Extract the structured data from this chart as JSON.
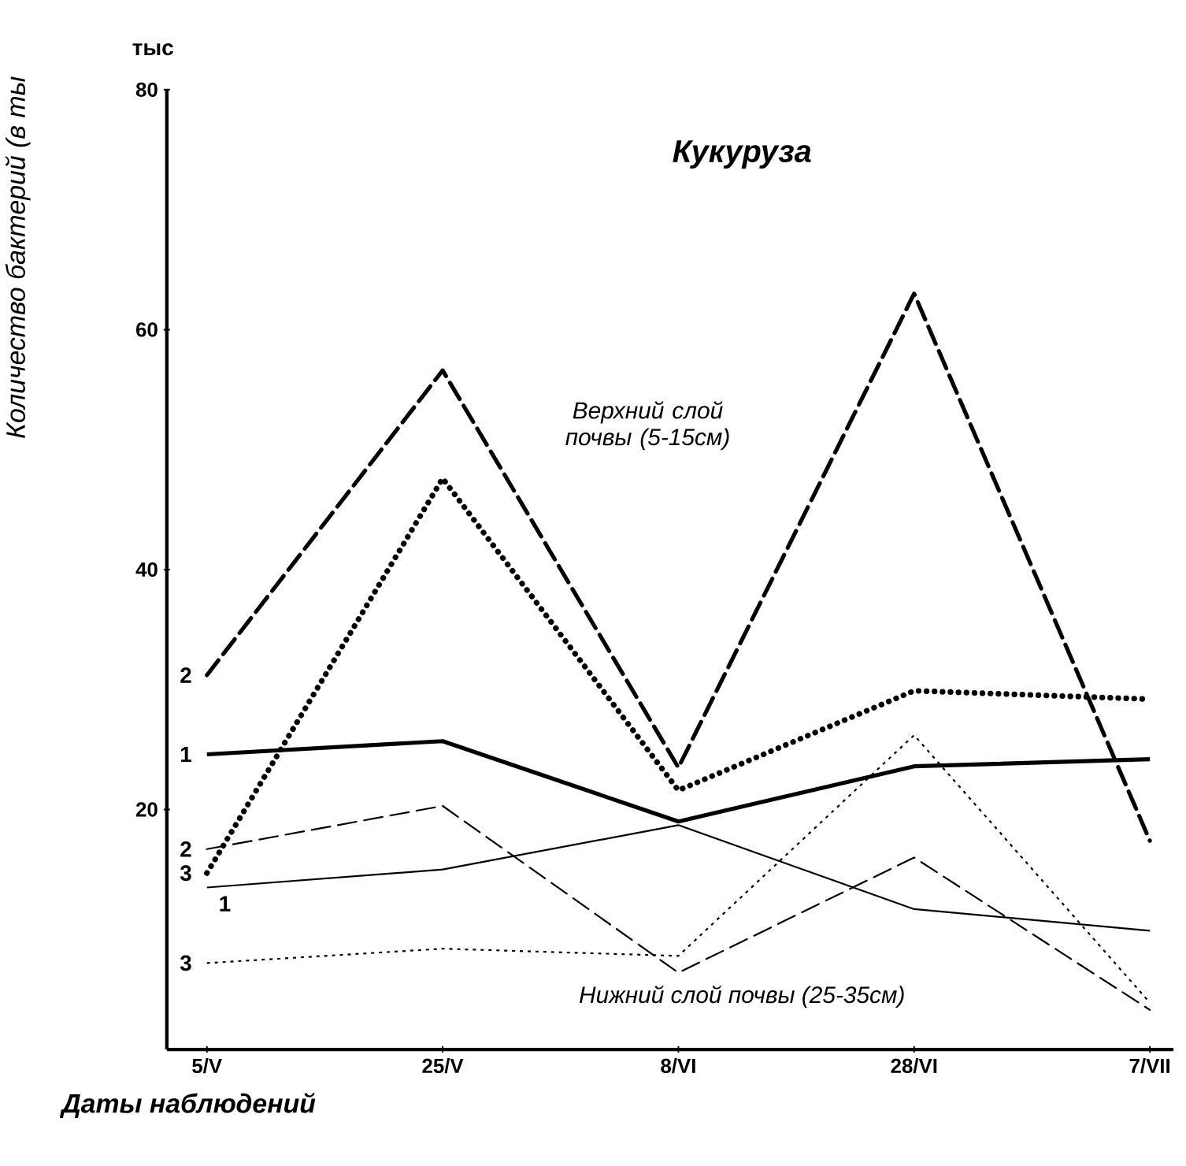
{
  "chart_data": {
    "type": "line",
    "title": "Кукуруза",
    "xlabel": "Даты наблюдений",
    "ylabel": "Количество бактерий (в ты",
    "categories": [
      "5/V",
      "25/V",
      "8/VI",
      "28/VI",
      "7/VII"
    ],
    "ylim": [
      0,
      80
    ],
    "yticks": [
      20,
      40,
      60,
      80
    ],
    "grid": false,
    "marker": "none",
    "annotations": [
      "тыс",
      "Верхний слой почвы (5-15см)",
      "Нижний слой почвы (25-35см)"
    ],
    "series": [
      {
        "name": "1",
        "color": "#000000",
        "line_style": "solid",
        "values": [
          24.6,
          25.7,
          19,
          23.6,
          24.2
        ]
      },
      {
        "name": "2",
        "color": "#000000",
        "line_style": "dashed",
        "values": [
          31.2,
          56.6,
          23.5,
          63,
          17.4
        ]
      },
      {
        "name": "3",
        "color": "#000000",
        "line_style": "dotted",
        "values": [
          14.7,
          47.6,
          21.6,
          29.9,
          29.2
        ]
      },
      {
        "name": "1",
        "color": "#000000",
        "line_style": "solid",
        "values": [
          13.5,
          15,
          18.7,
          11.7,
          9.9
        ]
      },
      {
        "name": "2",
        "color": "#000000",
        "line_style": "dashed",
        "values": [
          16.7,
          20.3,
          6.4,
          16,
          3.3
        ]
      },
      {
        "name": "3",
        "color": "#000000",
        "line_style": "dotted",
        "values": [
          7.2,
          8.4,
          7.8,
          26.2,
          3.9
        ]
      }
    ]
  }
}
